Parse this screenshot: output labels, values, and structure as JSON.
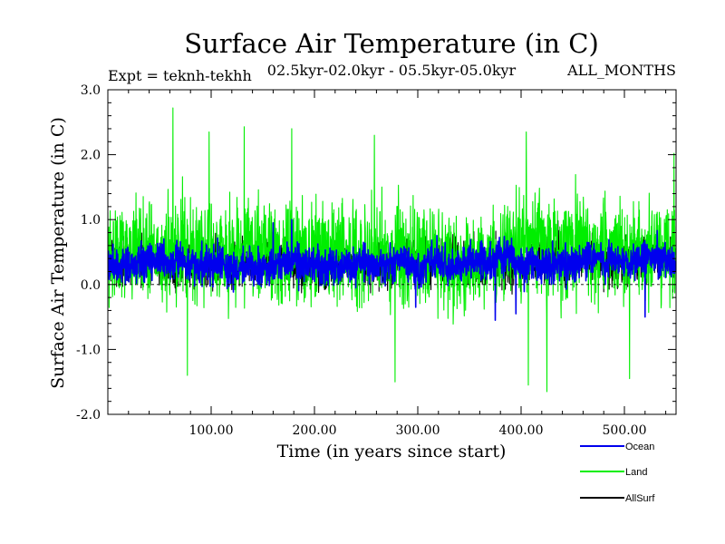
{
  "chart_data": {
    "type": "line",
    "title": "Surface Air Temperature (in C)",
    "subtitle_left": "Expt = teknh-tekhh",
    "subtitle_center": "02.5kyr-02.0kyr - 05.5kyr-05.0kyr",
    "subtitle_right": "ALL_MONTHS",
    "xlabel": "Time (in years since start)",
    "ylabel": "Surface Air Temperature (in C)",
    "xlim": [
      0,
      550
    ],
    "ylim": [
      -2.0,
      3.0
    ],
    "x_ticks": [
      {
        "value": 100,
        "label": "100.00"
      },
      {
        "value": 200,
        "label": "200.00"
      },
      {
        "value": 300,
        "label": "300.00"
      },
      {
        "value": 400,
        "label": "400.00"
      },
      {
        "value": 500,
        "label": "500.00"
      }
    ],
    "y_ticks": [
      {
        "value": -2.0,
        "label": "-2.0"
      },
      {
        "value": -1.0,
        "label": "-1.0"
      },
      {
        "value": 0.0,
        "label": "0.0"
      },
      {
        "value": 1.0,
        "label": "1.0"
      },
      {
        "value": 2.0,
        "label": "2.0"
      },
      {
        "value": 3.0,
        "label": "3.0"
      }
    ],
    "x_minor_step": 20,
    "y_minor_step": 0.2,
    "series": [
      {
        "name": "Land",
        "color": "#00ee00",
        "mean": 0.48,
        "noise_amplitude": 0.55,
        "spikes": [
          [
            63,
            2.72
          ],
          [
            98,
            2.35
          ],
          [
            132,
            2.43
          ],
          [
            178,
            2.4
          ],
          [
            258,
            2.3
          ],
          [
            405,
            2.35
          ],
          [
            548,
            2.02
          ],
          [
            77,
            -1.4
          ],
          [
            278,
            -1.5
          ],
          [
            425,
            -1.65
          ],
          [
            407,
            -1.55
          ],
          [
            505,
            -1.45
          ]
        ]
      },
      {
        "name": "Ocean",
        "color": "#0000ee",
        "mean": 0.3,
        "noise_amplitude": 0.2,
        "spikes": [
          [
            178,
            1.0
          ],
          [
            160,
            0.95
          ],
          [
            298,
            -0.35
          ],
          [
            375,
            -0.55
          ],
          [
            395,
            -0.45
          ],
          [
            520,
            -0.5
          ]
        ]
      },
      {
        "name": "AllSurf",
        "color": "#000000",
        "mean": 0.35,
        "noise_amplitude": 0.25,
        "spikes": []
      }
    ],
    "legend_position": "bottom-right",
    "legend": [
      {
        "name": "Ocean",
        "color": "#0000ee"
      },
      {
        "name": "Land",
        "color": "#00ee00"
      },
      {
        "name": "AllSurf",
        "color": "#000000"
      }
    ]
  }
}
